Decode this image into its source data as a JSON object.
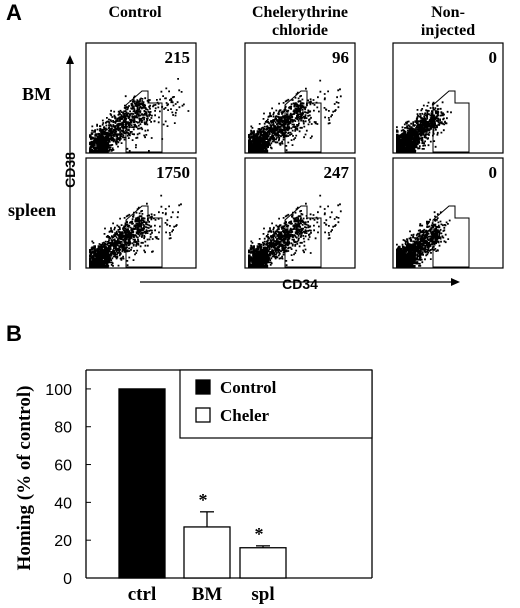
{
  "panel_a": {
    "letter": "A",
    "columns": [
      "Control",
      "Chelerythrine chloride",
      "Non-injected"
    ],
    "column_lines": [
      [
        "Control"
      ],
      [
        "Chelerythrine",
        "chloride"
      ],
      [
        "Non-",
        "injected"
      ]
    ],
    "rows": [
      "BM",
      "spleen"
    ],
    "counts": [
      [
        "215",
        "96",
        "0"
      ],
      [
        "1750",
        "247",
        "0"
      ]
    ],
    "x_axis_label": "CD34",
    "y_axis_label": "CD38"
  },
  "chart_data": {
    "type": "bar",
    "panel_letter": "B",
    "categories": [
      "ctrl",
      "BM",
      "spl"
    ],
    "series": [
      {
        "name": "Control",
        "values": [
          100,
          null,
          null
        ],
        "color": "#000000"
      },
      {
        "name": "Cheler",
        "values": [
          null,
          27,
          16
        ],
        "color": "#ffffff"
      }
    ],
    "error_bars": [
      null,
      8,
      1
    ],
    "significance": [
      "",
      "*",
      "*"
    ],
    "xlabel": "",
    "ylabel": "Homing (% of control)",
    "ylim": [
      0,
      110
    ],
    "yticks": [
      0,
      20,
      40,
      60,
      80,
      100
    ],
    "legend_position": "top-right",
    "grid": false
  }
}
